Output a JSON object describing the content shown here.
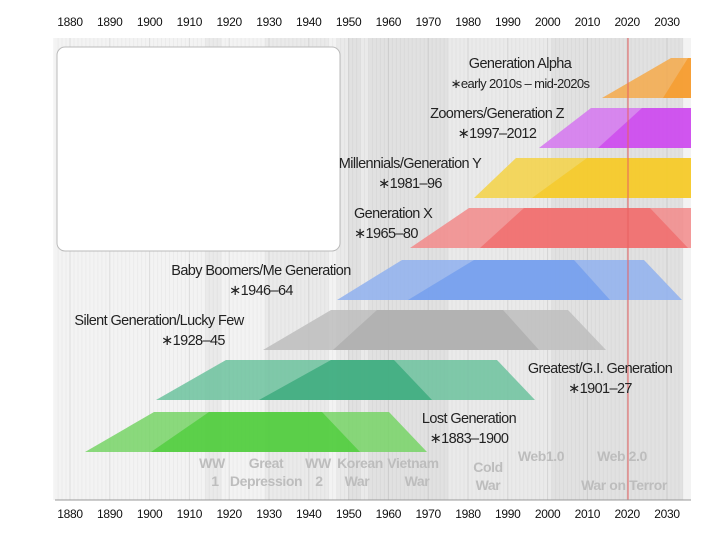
{
  "axis": {
    "years": [
      "1880",
      "1890",
      "1900",
      "1910",
      "1920",
      "1930",
      "1940",
      "1950",
      "1960",
      "1970",
      "1980",
      "1990",
      "2000",
      "2010",
      "2020",
      "2030"
    ]
  },
  "generations": [
    {
      "name": "Generation Alpha",
      "dates": "∗early 2010s – mid-2020s",
      "color": "#f5a94a",
      "dark": "#f59a2a"
    },
    {
      "name": "Zoomers/Generation Z",
      "dates": "∗1997–2012",
      "color": "#d575f0",
      "dark": "#cc44ee"
    },
    {
      "name": "Millennials/Generation Y",
      "dates": "∗1981–96",
      "color": "#f5d245",
      "dark": "#f5c825"
    },
    {
      "name": "Generation X",
      "dates": "∗1965–80",
      "color": "#f28a8a",
      "dark": "#f06a6a"
    },
    {
      "name": "Baby Boomers/Me Generation",
      "dates": "∗1946–64",
      "color": "#8fb0ef",
      "dark": "#709cee"
    },
    {
      "name": "Silent Generation/Lucky Few",
      "dates": "∗1928–45",
      "color": "#bdbdbd",
      "dark": "#acacac"
    },
    {
      "name": "Greatest/G.I. Generation",
      "dates": "∗1901–27",
      "color": "#6cc29d",
      "dark": "#35a879"
    },
    {
      "name": "Lost Generation",
      "dates": "∗1883–1900",
      "color": "#77d466",
      "dark": "#4ccc3a"
    }
  ],
  "events": {
    "ww1": [
      "WW",
      "1"
    ],
    "depression": [
      "Great",
      "Depression"
    ],
    "ww2": [
      "WW",
      "2"
    ],
    "korean": [
      "Korean",
      "War"
    ],
    "vietnam": [
      "Vietnam",
      "War"
    ],
    "cold": [
      "Cold",
      "War"
    ],
    "web1": "Web1.0",
    "web2": "Web 2.0",
    "terror": "War on Terror"
  },
  "current_year_line_color": "#e86060"
}
